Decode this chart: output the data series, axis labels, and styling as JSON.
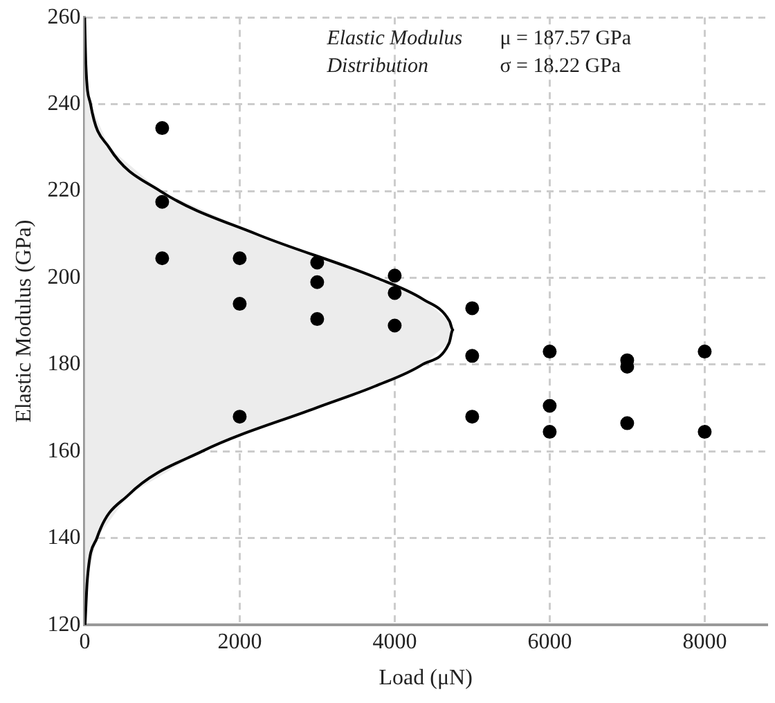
{
  "chart_data": {
    "type": "scatter",
    "xlabel": "Load (μN)",
    "ylabel": "Elastic Modulus (GPa)",
    "annotations": [
      "Elastic Modulus",
      "Distribution",
      "μ = 187.57 GPa",
      "σ = 18.22 GPa"
    ],
    "xlim": [
      0,
      8800
    ],
    "xticks": [
      0,
      2000,
      4000,
      6000,
      8000
    ],
    "ylim": [
      120,
      260
    ],
    "yticks": [
      120,
      140,
      160,
      180,
      200,
      220,
      240,
      260
    ],
    "grid": true,
    "legend": false,
    "series": [
      {
        "type": "area",
        "color": "#000000",
        "marker": "none",
        "x": [
          0,
          13,
          76,
          316,
          975,
          2226,
          3764,
          4371,
          4708,
          4750,
          4703,
          4357,
          3744,
          2984,
          1512,
          567,
          157,
          32,
          5
        ],
        "values": [
          260,
          250,
          240,
          230,
          220,
          210,
          200,
          195,
          190,
          188,
          185,
          180,
          175,
          170,
          160,
          150,
          140,
          130,
          120
        ]
      },
      {
        "color": "#000000",
        "marker": "circle",
        "x": [
          1000,
          1000,
          1000,
          2000,
          2000,
          2000,
          3000,
          3000,
          3000,
          4000,
          4000,
          4000,
          5000,
          5000,
          5000,
          6000,
          6000,
          6000,
          7000,
          7000,
          7000,
          8000,
          8000
        ],
        "values": [
          234.5,
          217.5,
          204.5,
          204.5,
          194,
          168,
          203.5,
          199,
          190.5,
          200.5,
          196.5,
          189,
          193,
          182,
          168,
          183,
          170.5,
          164.5,
          181,
          179.5,
          166.5,
          183,
          164.5
        ]
      }
    ]
  }
}
